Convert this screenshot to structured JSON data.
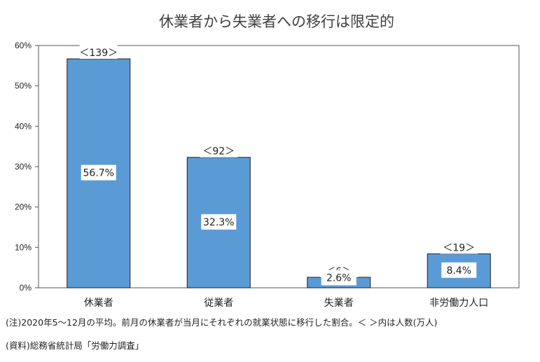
{
  "notes": {
    "line1": "(注)2020年5～12月の平均。前月の休業者が当月にそれぞれの就業状態に移行した割合。＜ ＞内は人数(万人)",
    "line2": "(資料)総務省統計局「労働力調査」"
  },
  "chart_data": {
    "type": "bar",
    "title": "休業者から失業者への移行は限定的",
    "xlabel": "",
    "ylabel": "",
    "categories": [
      "休業者",
      "従業者",
      "失業者",
      "非労働力人口"
    ],
    "values": [
      56.7,
      32.3,
      2.6,
      8.4
    ],
    "value_labels": [
      "56.7%",
      "32.3%",
      "2.6%",
      "8.4%"
    ],
    "count_labels": [
      "＜139＞",
      "＜92＞",
      "＜6＞",
      "＜19＞"
    ],
    "ylim": [
      0,
      60
    ],
    "yticks": [
      0,
      10,
      20,
      30,
      40,
      50,
      60
    ],
    "ytick_labels": [
      "0%",
      "10%",
      "20%",
      "30%",
      "40%",
      "50%",
      "60%"
    ],
    "grid": false,
    "legend": "none",
    "colors": {
      "bar_fill": "#5b9bd5",
      "bar_stroke": "#1f1f1f",
      "axis": "#555555"
    }
  }
}
